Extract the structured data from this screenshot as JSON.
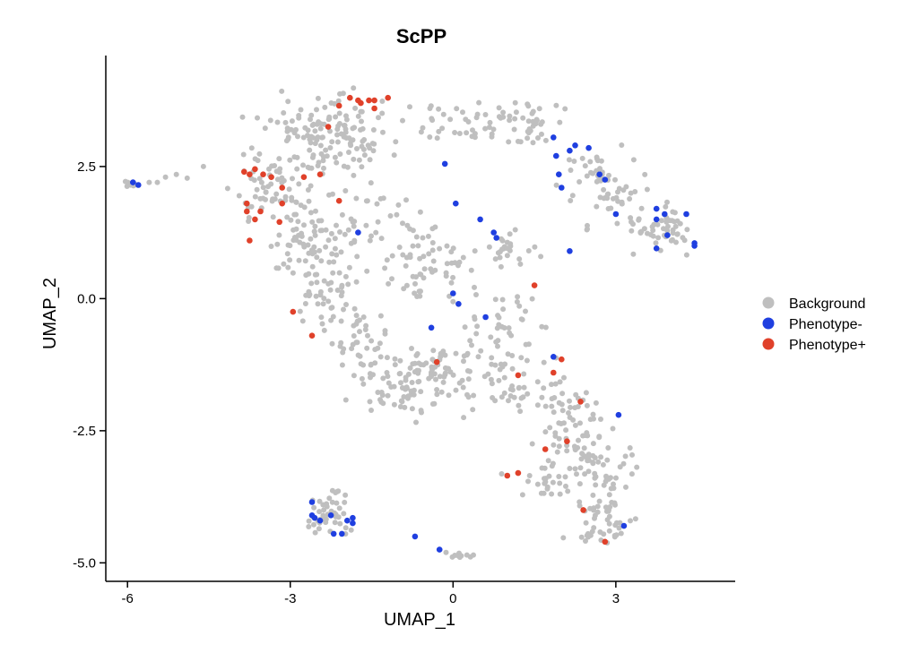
{
  "chart_data": {
    "type": "scatter",
    "title": "ScPP",
    "xlabel": "UMAP_1",
    "ylabel": "UMAP_2",
    "xlim": [
      -6.4,
      5.2
    ],
    "ylim": [
      -5.35,
      4.6
    ],
    "xticks": [
      -6,
      -3,
      0,
      3
    ],
    "yticks": [
      -5.0,
      -2.5,
      0.0,
      2.5
    ],
    "xtick_labels": [
      "-6",
      "-3",
      "0",
      "3"
    ],
    "ytick_labels": [
      "-5.0",
      "-2.5",
      "0.0",
      "2.5"
    ],
    "grid": false,
    "legend_position": "right",
    "legend": [
      {
        "label": "Background",
        "color": "#bfbfbf"
      },
      {
        "label": "Phenotype-",
        "color": "#1f3fe0"
      },
      {
        "label": "Phenotype+",
        "color": "#e0412a"
      }
    ],
    "series": [
      {
        "name": "Phenotype-",
        "color": "#1f3fe0",
        "points": [
          [
            -5.9,
            2.2
          ],
          [
            -5.8,
            2.15
          ],
          [
            -1.75,
            1.25
          ],
          [
            -0.15,
            2.55
          ],
          [
            0.05,
            1.8
          ],
          [
            0.5,
            1.5
          ],
          [
            0.75,
            1.25
          ],
          [
            0.8,
            1.15
          ],
          [
            1.85,
            3.05
          ],
          [
            1.9,
            2.7
          ],
          [
            1.95,
            2.35
          ],
          [
            2.0,
            2.1
          ],
          [
            2.15,
            2.8
          ],
          [
            2.25,
            2.9
          ],
          [
            2.5,
            2.85
          ],
          [
            2.7,
            2.35
          ],
          [
            2.8,
            2.25
          ],
          [
            3.0,
            1.6
          ],
          [
            2.15,
            0.9
          ],
          [
            3.75,
            1.7
          ],
          [
            3.75,
            1.5
          ],
          [
            3.9,
            1.6
          ],
          [
            3.75,
            0.95
          ],
          [
            3.95,
            1.2
          ],
          [
            4.3,
            1.6
          ],
          [
            4.45,
            1.05
          ],
          [
            4.45,
            1.0
          ],
          [
            0.0,
            0.1
          ],
          [
            0.1,
            -0.1
          ],
          [
            0.6,
            -0.35
          ],
          [
            -0.4,
            -0.55
          ],
          [
            1.85,
            -1.1
          ],
          [
            3.05,
            -2.2
          ],
          [
            3.15,
            -4.3
          ],
          [
            -2.6,
            -3.85
          ],
          [
            -2.6,
            -4.1
          ],
          [
            -2.55,
            -4.15
          ],
          [
            -2.45,
            -4.2
          ],
          [
            -2.25,
            -4.1
          ],
          [
            -2.2,
            -4.45
          ],
          [
            -2.05,
            -4.45
          ],
          [
            -1.95,
            -4.2
          ],
          [
            -1.85,
            -4.15
          ],
          [
            -1.85,
            -4.25
          ],
          [
            -0.7,
            -4.5
          ],
          [
            -0.25,
            -4.75
          ]
        ]
      },
      {
        "name": "Phenotype+",
        "color": "#e0412a",
        "points": [
          [
            -1.9,
            3.8
          ],
          [
            -1.75,
            3.75
          ],
          [
            -1.7,
            3.7
          ],
          [
            -1.55,
            3.75
          ],
          [
            -1.45,
            3.75
          ],
          [
            -1.2,
            3.8
          ],
          [
            -2.1,
            3.65
          ],
          [
            -1.45,
            3.6
          ],
          [
            -2.3,
            3.25
          ],
          [
            -3.85,
            2.4
          ],
          [
            -3.75,
            2.35
          ],
          [
            -3.65,
            2.45
          ],
          [
            -3.5,
            2.35
          ],
          [
            -3.35,
            2.3
          ],
          [
            -2.75,
            2.3
          ],
          [
            -2.45,
            2.35
          ],
          [
            -3.15,
            2.1
          ],
          [
            -2.1,
            1.85
          ],
          [
            -3.8,
            1.8
          ],
          [
            -3.8,
            1.65
          ],
          [
            -3.65,
            1.5
          ],
          [
            -3.55,
            1.65
          ],
          [
            -3.75,
            1.1
          ],
          [
            -3.15,
            1.8
          ],
          [
            -3.2,
            1.45
          ],
          [
            -2.95,
            -0.25
          ],
          [
            -2.6,
            -0.7
          ],
          [
            1.5,
            0.25
          ],
          [
            -0.3,
            -1.2
          ],
          [
            1.2,
            -1.45
          ],
          [
            1.85,
            -1.4
          ],
          [
            2.0,
            -1.15
          ],
          [
            2.35,
            -1.95
          ],
          [
            1.7,
            -2.85
          ],
          [
            2.1,
            -2.7
          ],
          [
            1.2,
            -3.3
          ],
          [
            1.0,
            -3.35
          ],
          [
            2.4,
            -4.0
          ],
          [
            2.8,
            -4.6
          ]
        ]
      }
    ]
  }
}
